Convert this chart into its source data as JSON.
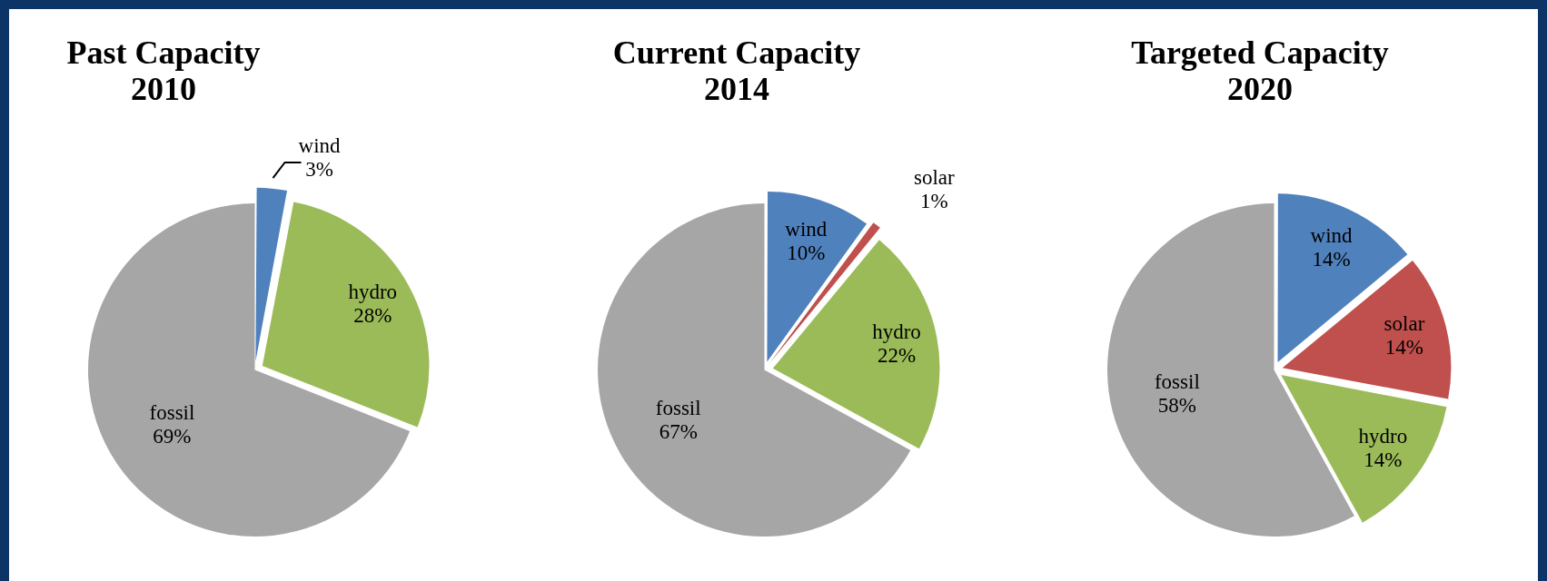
{
  "chart_data": [
    {
      "type": "pie",
      "title": "Past Capacity 2010",
      "categories": [
        "wind",
        "hydro",
        "fossil"
      ],
      "values": [
        3,
        28,
        69
      ],
      "value_labels": [
        "3%",
        "28%",
        "69%"
      ],
      "colors": [
        "#4f81bd",
        "#9bbb59",
        "#a6a6a6"
      ]
    },
    {
      "type": "pie",
      "title": "Current Capacity 2014",
      "categories": [
        "wind",
        "solar",
        "hydro",
        "fossil"
      ],
      "values": [
        10,
        1,
        22,
        67
      ],
      "value_labels": [
        "10%",
        "1%",
        "22%",
        "67%"
      ],
      "colors": [
        "#4f81bd",
        "#c0504d",
        "#9bbb59",
        "#a6a6a6"
      ]
    },
    {
      "type": "pie",
      "title": "Targeted Capacity 2020",
      "categories": [
        "wind",
        "solar",
        "hydro",
        "fossil"
      ],
      "values": [
        14,
        14,
        14,
        58
      ],
      "value_labels": [
        "14%",
        "14%",
        "14%",
        "58%"
      ],
      "colors": [
        "#4f81bd",
        "#c0504d",
        "#9bbb59",
        "#a6a6a6"
      ]
    }
  ]
}
